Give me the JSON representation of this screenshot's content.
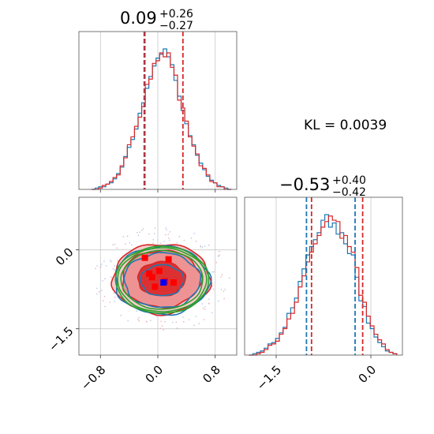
{
  "chart_data": [
    {
      "type": "histogram",
      "panel": "top-left",
      "title": {
        "main": "0.09",
        "plus": "+0.26",
        "minus": "−0.27"
      },
      "xlim": [
        -1.1,
        1.1
      ],
      "xticks": [
        -0.8,
        0.0,
        0.8
      ],
      "bin_width": 0.05,
      "series": [
        {
          "color": "#1f77b4",
          "x": [
            -0.9,
            -0.85,
            -0.8,
            -0.75,
            -0.7,
            -0.65,
            -0.6,
            -0.55,
            -0.5,
            -0.45,
            -0.4,
            -0.35,
            -0.3,
            -0.25,
            -0.2,
            -0.15,
            -0.1,
            -0.05,
            0.0,
            0.05,
            0.1,
            0.15,
            0.2,
            0.25,
            0.3,
            0.35,
            0.4,
            0.45,
            0.5,
            0.55,
            0.6,
            0.65,
            0.7,
            0.75,
            0.8,
            0.85,
            0.9,
            0.95,
            1.0
          ],
          "values": [
            0,
            1,
            2,
            2,
            4,
            5,
            8,
            12,
            17,
            25,
            32,
            38,
            46,
            58,
            66,
            77,
            86,
            94,
            100,
            103,
            107,
            101,
            95,
            83,
            71,
            60,
            50,
            41,
            34,
            26,
            20,
            15,
            10,
            7,
            5,
            3,
            2,
            1,
            0
          ]
        },
        {
          "color": "#d62728",
          "x": [
            -0.9,
            -0.85,
            -0.8,
            -0.75,
            -0.7,
            -0.65,
            -0.6,
            -0.55,
            -0.5,
            -0.45,
            -0.4,
            -0.35,
            -0.3,
            -0.25,
            -0.2,
            -0.15,
            -0.1,
            -0.05,
            0.0,
            0.05,
            0.1,
            0.15,
            0.2,
            0.25,
            0.3,
            0.35,
            0.4,
            0.45,
            0.5,
            0.55,
            0.6,
            0.65,
            0.7,
            0.75,
            0.8,
            0.85,
            0.9,
            0.95,
            1.0
          ],
          "values": [
            0,
            0,
            1,
            3,
            4,
            6,
            9,
            11,
            18,
            24,
            34,
            40,
            48,
            55,
            63,
            80,
            84,
            96,
            98,
            104,
            101,
            104,
            93,
            87,
            68,
            62,
            52,
            40,
            33,
            27,
            18,
            16,
            11,
            6,
            5,
            2,
            2,
            0,
            0
          ]
        }
      ],
      "vlines": [
        {
          "x": -0.18,
          "color": "#1f77b4"
        },
        {
          "x": -0.19,
          "color": "#d62728"
        },
        {
          "x": 0.35,
          "color": "#d62728"
        }
      ]
    },
    {
      "type": "contour",
      "panel": "bottom-left",
      "xlim": [
        -1.1,
        1.1
      ],
      "ylim": [
        -2.0,
        1.0
      ],
      "xticks": [
        -0.8,
        0.0,
        0.8
      ],
      "yticks": [
        0.0,
        -1.5
      ],
      "series": [
        {
          "color": "#d62728",
          "center": [
            0.05,
            -0.55
          ],
          "radii": [
            0.68,
            0.55,
            0.33
          ],
          "filled": true
        },
        {
          "color": "#1f77b4",
          "center": [
            0.06,
            -0.58
          ],
          "radii": [
            0.66,
            0.53,
            0.3
          ],
          "filled": false
        },
        {
          "color": "#2ca02c",
          "center": [
            0.06,
            -0.57
          ],
          "radii": [
            0.65,
            0.62,
            0.57
          ],
          "filled": false
        }
      ],
      "red_markers": [
        [
          -0.18,
          -0.15
        ],
        [
          0.15,
          -0.18
        ],
        [
          -0.12,
          -0.45
        ],
        [
          -0.08,
          -0.52
        ],
        [
          0.22,
          -0.62
        ],
        [
          0.1,
          -0.6
        ],
        [
          -0.04,
          -0.7
        ],
        [
          0.02,
          -0.4
        ]
      ],
      "blue_marker": [
        0.08,
        -0.62
      ]
    },
    {
      "type": "histogram",
      "panel": "bottom-right",
      "title": {
        "main": "−0.53",
        "plus": "+0.40",
        "minus": "−0.42"
      },
      "xlim": [
        -2.0,
        0.5
      ],
      "xticks": [
        -1.5,
        0.0
      ],
      "bin_width": 0.06,
      "series": [
        {
          "color": "#1f77b4",
          "x": [
            -1.9,
            -1.84,
            -1.78,
            -1.72,
            -1.66,
            -1.6,
            -1.54,
            -1.48,
            -1.42,
            -1.36,
            -1.3,
            -1.24,
            -1.18,
            -1.12,
            -1.06,
            -1.0,
            -0.94,
            -0.88,
            -0.82,
            -0.76,
            -0.7,
            -0.64,
            -0.58,
            -0.52,
            -0.46,
            -0.4,
            -0.34,
            -0.28,
            -0.22,
            -0.16,
            -0.1,
            -0.04,
            0.02,
            0.08,
            0.14,
            0.2,
            0.26,
            0.32,
            0.38
          ],
          "values": [
            0,
            1,
            2,
            3,
            5,
            8,
            9,
            12,
            16,
            20,
            30,
            34,
            41,
            53,
            62,
            72,
            78,
            83,
            88,
            97,
            101,
            92,
            95,
            87,
            88,
            80,
            73,
            72,
            56,
            39,
            35,
            23,
            19,
            13,
            9,
            6,
            3,
            2,
            1
          ]
        },
        {
          "color": "#d62728",
          "x": [
            -1.9,
            -1.84,
            -1.78,
            -1.72,
            -1.66,
            -1.6,
            -1.54,
            -1.48,
            -1.42,
            -1.36,
            -1.3,
            -1.24,
            -1.18,
            -1.12,
            -1.06,
            -1.0,
            -0.94,
            -0.88,
            -0.82,
            -0.76,
            -0.7,
            -0.64,
            -0.58,
            -0.52,
            -0.46,
            -0.4,
            -0.34,
            -0.28,
            -0.22,
            -0.16,
            -0.1,
            -0.04,
            0.02,
            0.08,
            0.14,
            0.2,
            0.26,
            0.32,
            0.38
          ],
          "values": [
            0,
            0,
            1,
            2,
            4,
            7,
            8,
            10,
            15,
            19,
            26,
            30,
            38,
            49,
            57,
            67,
            74,
            80,
            86,
            92,
            96,
            100,
            97,
            96,
            84,
            86,
            78,
            74,
            63,
            43,
            38,
            28,
            21,
            15,
            11,
            8,
            4,
            2,
            1
          ]
        }
      ],
      "vlines": [
        {
          "x": -1.02,
          "color": "#1f77b4"
        },
        {
          "x": -0.94,
          "color": "#d62728"
        },
        {
          "x": -0.25,
          "color": "#1f77b4"
        },
        {
          "x": -0.13,
          "color": "#d62728"
        }
      ]
    }
  ],
  "annotation": {
    "text": "KL = 0.0039"
  }
}
